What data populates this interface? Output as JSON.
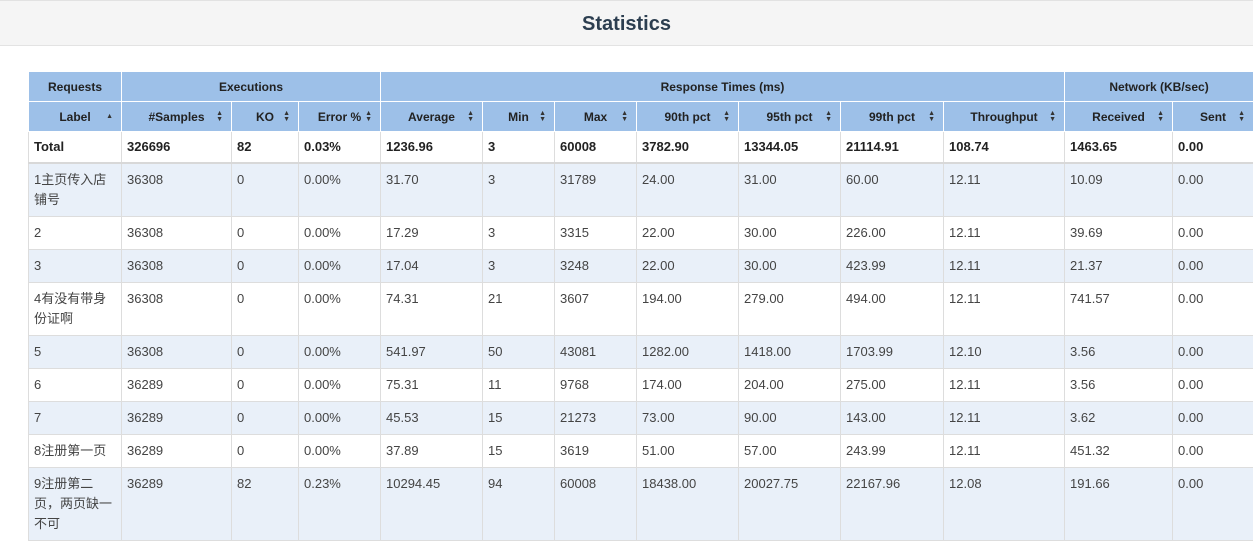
{
  "title": "Statistics",
  "groups": [
    "Requests",
    "Executions",
    "Response Times (ms)",
    "Network (KB/sec)"
  ],
  "columns": [
    "Label",
    "#Samples",
    "KO",
    "Error %",
    "Average",
    "Min",
    "Max",
    "90th pct",
    "95th pct",
    "99th pct",
    "Throughput",
    "Received",
    "Sent"
  ],
  "total": [
    "Total",
    "326696",
    "82",
    "0.03%",
    "1236.96",
    "3",
    "60008",
    "3782.90",
    "13344.05",
    "21114.91",
    "108.74",
    "1463.65",
    "0.00"
  ],
  "rows": [
    [
      "1主页传入店铺号",
      "36308",
      "0",
      "0.00%",
      "31.70",
      "3",
      "31789",
      "24.00",
      "31.00",
      "60.00",
      "12.11",
      "10.09",
      "0.00"
    ],
    [
      "2",
      "36308",
      "0",
      "0.00%",
      "17.29",
      "3",
      "3315",
      "22.00",
      "30.00",
      "226.00",
      "12.11",
      "39.69",
      "0.00"
    ],
    [
      "3",
      "36308",
      "0",
      "0.00%",
      "17.04",
      "3",
      "3248",
      "22.00",
      "30.00",
      "423.99",
      "12.11",
      "21.37",
      "0.00"
    ],
    [
      "4有没有带身份证啊",
      "36308",
      "0",
      "0.00%",
      "74.31",
      "21",
      "3607",
      "194.00",
      "279.00",
      "494.00",
      "12.11",
      "741.57",
      "0.00"
    ],
    [
      "5",
      "36308",
      "0",
      "0.00%",
      "541.97",
      "50",
      "43081",
      "1282.00",
      "1418.00",
      "1703.99",
      "12.10",
      "3.56",
      "0.00"
    ],
    [
      "6",
      "36289",
      "0",
      "0.00%",
      "75.31",
      "11",
      "9768",
      "174.00",
      "204.00",
      "275.00",
      "12.11",
      "3.56",
      "0.00"
    ],
    [
      "7",
      "36289",
      "0",
      "0.00%",
      "45.53",
      "15",
      "21273",
      "73.00",
      "90.00",
      "143.00",
      "12.11",
      "3.62",
      "0.00"
    ],
    [
      "8注册第一页",
      "36289",
      "0",
      "0.00%",
      "37.89",
      "15",
      "3619",
      "51.00",
      "57.00",
      "243.99",
      "12.11",
      "451.32",
      "0.00"
    ],
    [
      "9注册第二页，两页缺一不可",
      "36289",
      "82",
      "0.23%",
      "10294.45",
      "94",
      "60008",
      "18438.00",
      "20027.75",
      "22167.96",
      "12.08",
      "191.66",
      "0.00"
    ]
  ]
}
